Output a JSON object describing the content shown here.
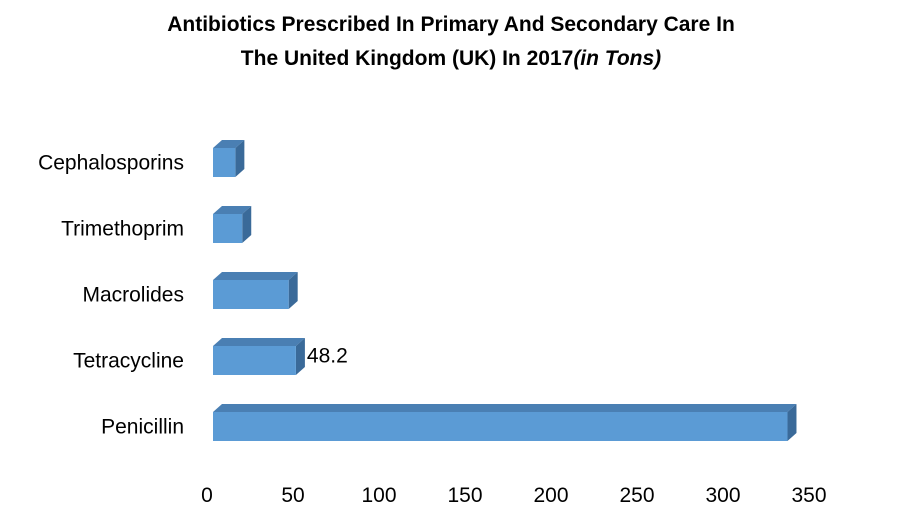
{
  "colors": {
    "bar_front": "#5B9BD5",
    "bar_top": "#4A7FB3",
    "bar_side": "#3A6A99",
    "text": "#000000"
  },
  "chart_data": {
    "type": "bar",
    "orientation": "horizontal",
    "title_line1": "Antibiotics Prescribed In Primary And Secondary Care In",
    "title_line2": "The United Kingdom (UK) In 2017",
    "title_unit": "(in Tons)",
    "categories": [
      "Penicillin",
      "Tetracycline",
      "Macrolides",
      "Trimethoprim",
      "Cephalosporins"
    ],
    "values": [
      334,
      48.2,
      44,
      17,
      13
    ],
    "data_labels": [
      "",
      "48.2",
      "",
      "",
      ""
    ],
    "xlim": [
      0,
      350
    ],
    "xticks": [
      "0",
      "50",
      "100",
      "150",
      "200",
      "250",
      "300",
      "350"
    ],
    "grid": false,
    "legend": "none",
    "style": "3d"
  }
}
